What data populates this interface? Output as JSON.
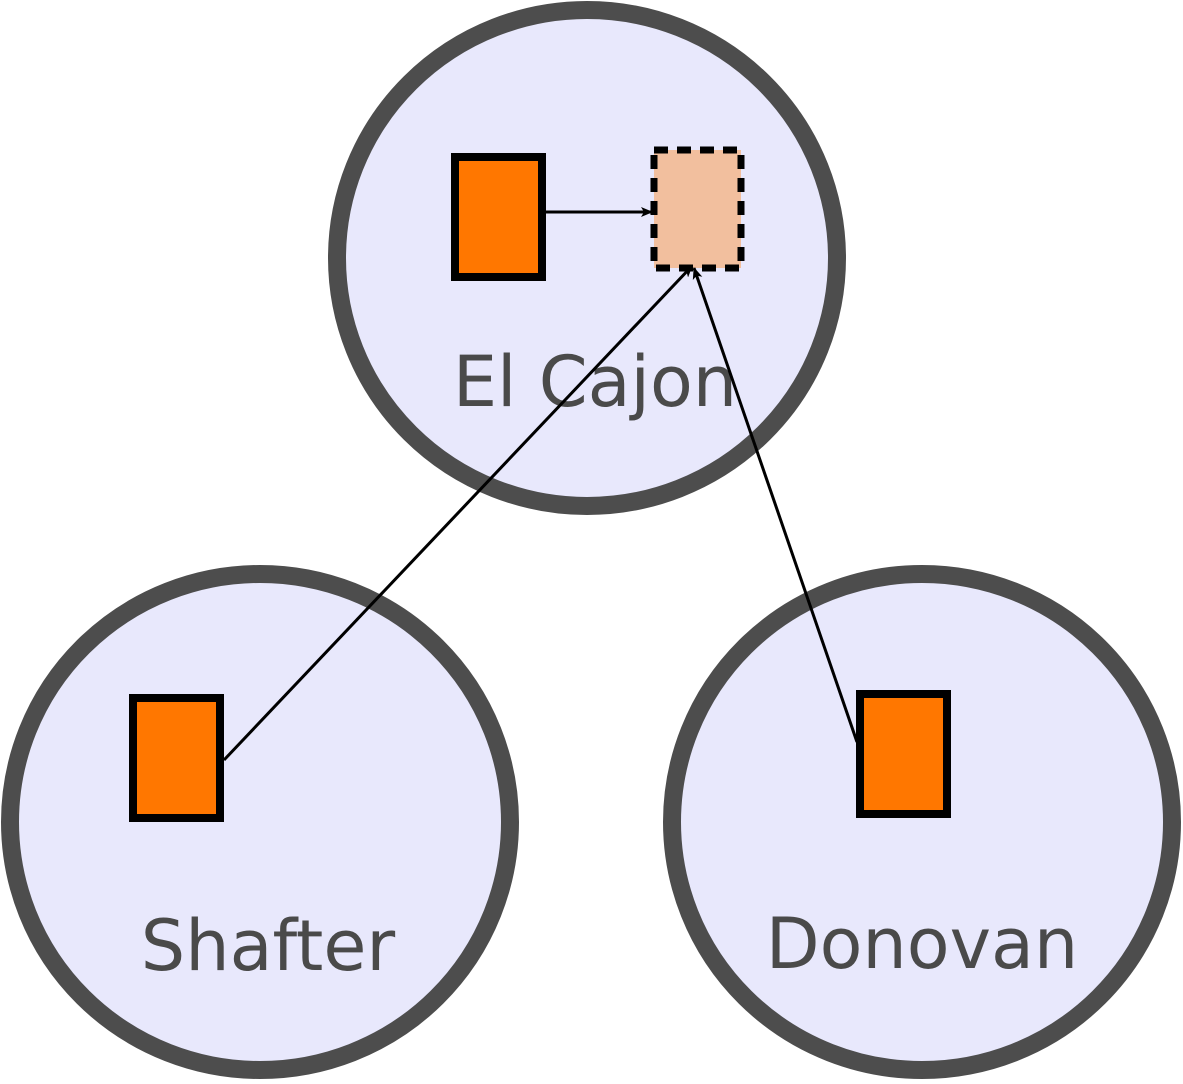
{
  "diagram": {
    "colors": {
      "circle_fill": "#e8e8fc",
      "circle_stroke": "#4d4d4d",
      "box_fill": "#ff7700",
      "target_fill": "#f2bf9e",
      "box_stroke": "#000000",
      "edge_color": "#000000",
      "label_color": "#4a4a4a"
    },
    "nodes": [
      {
        "id": "el-cajon",
        "label": "El Cajon"
      },
      {
        "id": "shafter",
        "label": "Shafter"
      },
      {
        "id": "donovan",
        "label": "Donovan"
      }
    ],
    "edges": [
      {
        "from": "el-cajon-box",
        "to": "el-cajon-target"
      },
      {
        "from": "shafter-box",
        "to": "el-cajon-target"
      },
      {
        "from": "donovan-box",
        "to": "el-cajon-target"
      }
    ]
  }
}
